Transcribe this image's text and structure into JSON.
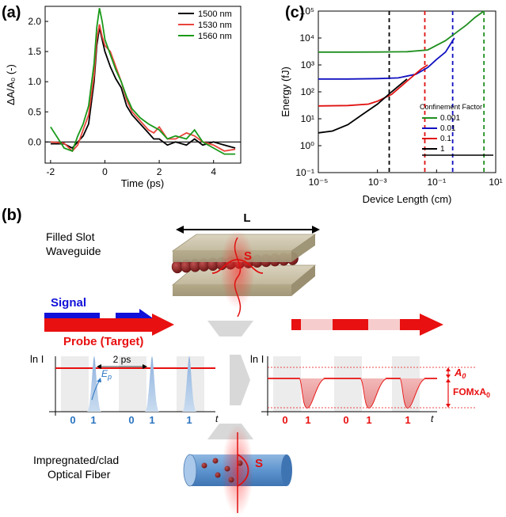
{
  "panel_labels": {
    "a": "(a)",
    "b": "(b)",
    "c": "(c)"
  },
  "chart_data": [
    {
      "type": "line",
      "panel": "(a)",
      "xlabel": "Time (ps)",
      "ylabel": "ΔA/A₀ (-)",
      "xlim": [
        -2.2,
        5
      ],
      "ylim": [
        -0.35,
        2.25
      ],
      "xticks": [
        -2,
        0,
        2,
        4
      ],
      "yticks": [
        0.0,
        0.5,
        1.0,
        1.5,
        2.0
      ],
      "ytick_labels": [
        "0.0",
        "0.5",
        "1.0",
        "1.5",
        "2.0"
      ],
      "legend_position": "top-right",
      "series": [
        {
          "name": "1500 nm",
          "color": "#000000",
          "x": [
            -2.0,
            -1.5,
            -1.2,
            -1.0,
            -0.8,
            -0.6,
            -0.4,
            -0.3,
            -0.2,
            -0.1,
            0.0,
            0.2,
            0.4,
            0.6,
            0.8,
            1.0,
            1.3,
            1.6,
            1.8,
            2.0,
            2.3,
            2.6,
            3.0,
            3.3,
            3.6,
            4.0,
            4.4,
            4.8
          ],
          "y": [
            -0.03,
            -0.03,
            -0.1,
            0.0,
            0.1,
            0.3,
            1.0,
            1.6,
            1.9,
            1.7,
            1.5,
            1.25,
            1.05,
            0.9,
            0.6,
            0.45,
            0.3,
            0.15,
            0.05,
            0.05,
            -0.05,
            0.0,
            -0.05,
            0.05,
            -0.05,
            0.0,
            -0.05,
            -0.1
          ]
        },
        {
          "name": "1530 nm",
          "color": "#e8453c",
          "x": [
            -2.0,
            -1.5,
            -1.2,
            -1.0,
            -0.8,
            -0.6,
            -0.4,
            -0.3,
            -0.2,
            -0.1,
            0.0,
            0.2,
            0.4,
            0.6,
            0.8,
            1.0,
            1.3,
            1.6,
            1.8,
            2.0,
            2.3,
            2.6,
            3.0,
            3.3,
            3.6,
            4.0,
            4.4,
            4.8
          ],
          "y": [
            0.0,
            -0.02,
            -0.15,
            -0.05,
            0.2,
            0.45,
            1.1,
            1.7,
            1.95,
            1.75,
            1.6,
            1.5,
            1.25,
            1.0,
            0.7,
            0.5,
            0.35,
            0.2,
            0.15,
            0.25,
            0.05,
            0.05,
            0.15,
            0.1,
            0.0,
            -0.05,
            -0.15,
            -0.12
          ]
        },
        {
          "name": "1560 nm",
          "color": "#1a9a1a",
          "x": [
            -2.0,
            -1.5,
            -1.2,
            -1.0,
            -0.8,
            -0.6,
            -0.4,
            -0.3,
            -0.2,
            -0.1,
            0.0,
            0.2,
            0.4,
            0.6,
            0.8,
            1.0,
            1.3,
            1.6,
            1.8,
            2.0,
            2.3,
            2.6,
            3.0,
            3.3,
            3.6,
            4.0,
            4.4,
            4.8
          ],
          "y": [
            0.25,
            -0.1,
            -0.15,
            0.1,
            0.3,
            0.6,
            1.3,
            1.9,
            2.22,
            2.0,
            1.7,
            1.45,
            1.2,
            1.0,
            0.75,
            0.55,
            0.4,
            0.3,
            0.25,
            0.2,
            0.05,
            0.1,
            0.05,
            0.2,
            0.0,
            -0.1,
            -0.2,
            -0.2
          ]
        },
        {
          "name": "",
          "color": "#000000",
          "x": [
            -2.2,
            5.0
          ],
          "y": [
            0.0,
            0.0
          ]
        }
      ]
    },
    {
      "type": "line",
      "panel": "(c)",
      "xlabel": "Device Length (cm)",
      "ylabel": "Energy (fJ)",
      "xscale": "log",
      "yscale": "log",
      "xlim": [
        1e-05,
        10
      ],
      "ylim": [
        0.1,
        100000
      ],
      "xticks": [
        1e-05,
        0.001,
        0.1,
        10
      ],
      "xtick_labels": [
        "10⁻⁵",
        "10⁻³",
        "10⁻¹",
        "10¹"
      ],
      "yticks": [
        0.1,
        1,
        10,
        100,
        1000,
        10000,
        100000
      ],
      "ytick_labels": [
        "10⁻¹",
        "10⁰",
        "10¹",
        "10²",
        "10³",
        "10⁴",
        "10⁵"
      ],
      "legend_title": "Confinement Factor",
      "legend_position": "lower-right",
      "series": [
        {
          "name": "0.001",
          "color": "#1f8f1f",
          "x": [
            1e-05,
            0.0001,
            0.001,
            0.01,
            0.05,
            0.2,
            0.5,
            1,
            2,
            4
          ],
          "y": [
            3000,
            3000,
            3010,
            3100,
            3600,
            8000,
            17000,
            30000,
            58000,
            100000
          ]
        },
        {
          "name": "0.01",
          "color": "#1010c0",
          "x": [
            1e-05,
            0.0001,
            0.001,
            0.005,
            0.02,
            0.05,
            0.1,
            0.2,
            0.4
          ],
          "y": [
            300,
            300,
            310,
            330,
            450,
            800,
            1600,
            3000,
            10000
          ]
        },
        {
          "name": "0.1",
          "color": "#e01010",
          "x": [
            1e-05,
            0.0001,
            0.0005,
            0.001,
            0.003,
            0.01,
            0.03,
            0.05
          ],
          "y": [
            30,
            31,
            35,
            45,
            80,
            250,
            700,
            1000
          ]
        },
        {
          "name": "1",
          "color": "#000000",
          "x": [
            1e-05,
            3e-05,
            0.0001,
            0.0003,
            0.001,
            0.003,
            0.01
          ],
          "y": [
            3,
            3.5,
            6,
            14,
            35,
            100,
            300
          ]
        }
      ],
      "vertical_markers": [
        {
          "x": 0.0025,
          "color": "#000000"
        },
        {
          "x": 0.04,
          "color": "#e01010"
        },
        {
          "x": 0.35,
          "color": "#1010c0"
        },
        {
          "x": 4.0,
          "color": "#1f8f1f"
        }
      ]
    }
  ],
  "diagram": {
    "length_label": "L",
    "top_title_line1": "Filled Slot",
    "top_title_line2": "Waveguide",
    "s_label": "S",
    "signal_label": "Signal",
    "probe_label": "Probe (Target)",
    "left_axis": "ln I",
    "right_axis": "ln I",
    "t_label": "t",
    "spacing_label": "2 ps",
    "pulse_label": "E",
    "pulse_sub": "p",
    "bits": [
      "0",
      "1",
      "0",
      "1",
      "1"
    ],
    "a0_label": "A",
    "a0_sub": "0",
    "fom_label": "FOMxA",
    "fom_sub": "0",
    "bottom_title_line1": "Impregnated/clad",
    "bottom_title_line2": "Optical Fiber",
    "bottom_s_label": "S",
    "colors": {
      "signal": "#1010d8",
      "probe": "#e81010",
      "bits": "#2a74c0"
    }
  }
}
